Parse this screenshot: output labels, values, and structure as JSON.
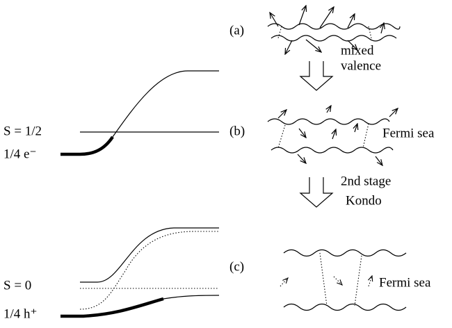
{
  "left_panel": {
    "upper": {
      "level_label": "S = 1/2",
      "charge_label": "1/4 e⁻"
    },
    "lower": {
      "level_label": "S = 0",
      "charge_label": "1/4 h⁺"
    }
  },
  "right_panel": {
    "stages": [
      {
        "label": "(a)"
      },
      {
        "label": "(b)",
        "annotation": "Fermi sea"
      },
      {
        "label": "(c)",
        "annotation": "Fermi sea"
      }
    ],
    "arrows": [
      {
        "lines": [
          "mixed",
          "valence"
        ]
      },
      {
        "lines": [
          "2nd stage",
          "Kondo"
        ]
      }
    ]
  }
}
